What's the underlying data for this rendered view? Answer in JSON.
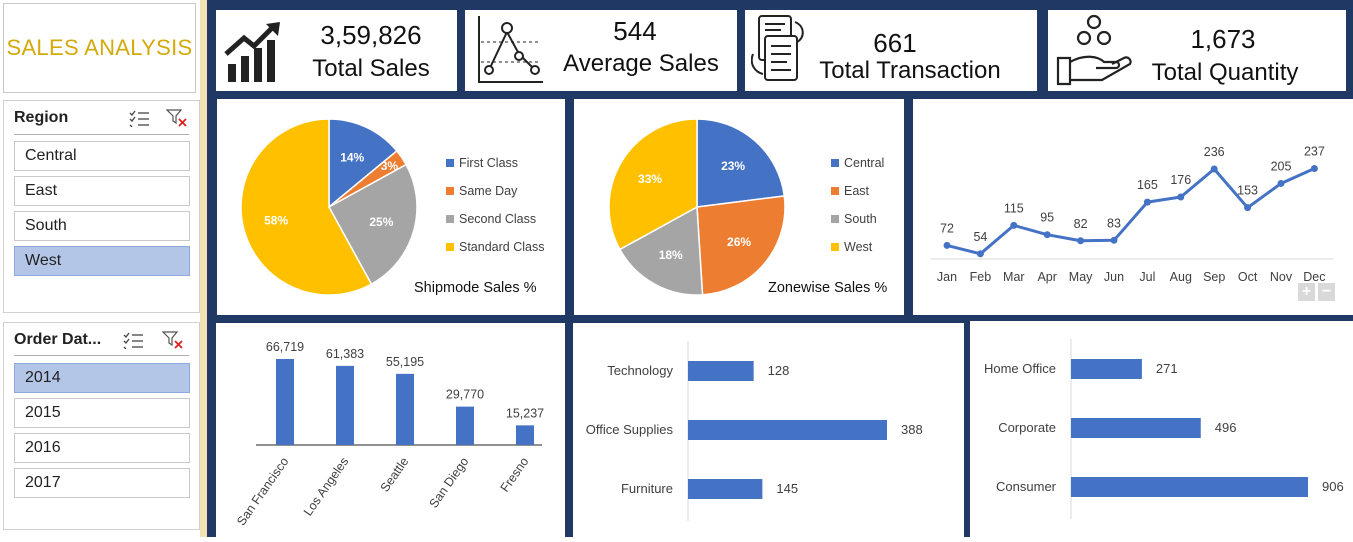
{
  "title": "SALES ANALYSIS",
  "kpis": {
    "total_sales": {
      "value": "3,59,826",
      "label": "Total Sales"
    },
    "average_sales": {
      "value": "544",
      "label": "Average Sales"
    },
    "total_transaction": {
      "value": "661",
      "label": "Total Transaction"
    },
    "total_quantity": {
      "value": "1,673",
      "label": "Total Quantity"
    }
  },
  "slicers": {
    "region": {
      "title": "Region",
      "items": [
        {
          "label": "Central",
          "selected": false
        },
        {
          "label": "East",
          "selected": false
        },
        {
          "label": "South",
          "selected": false
        },
        {
          "label": "West",
          "selected": true
        }
      ]
    },
    "order_date": {
      "title": "Order Dat...",
      "items": [
        {
          "label": "2014",
          "selected": true
        },
        {
          "label": "2015",
          "selected": false
        },
        {
          "label": "2016",
          "selected": false
        },
        {
          "label": "2017",
          "selected": false
        }
      ]
    }
  },
  "icons": {
    "kpi": [
      "bar-growth-icon",
      "line-chart-icon",
      "transaction-icon",
      "coins-hand-icon"
    ],
    "slicer": [
      "multi-select-icon",
      "clear-filter-icon"
    ]
  },
  "colors": {
    "navy": "#1f3864",
    "gold": "#d4a90a",
    "blue": "#4472c4",
    "orange": "#ed7d31",
    "gray": "#a5a5a5",
    "yellow": "#ffc000"
  },
  "chart_data": [
    {
      "id": "shipmode",
      "type": "pie",
      "title": "Shipmode Sales %",
      "categories": [
        "First Class",
        "Same Day",
        "Second Class",
        "Standard Class"
      ],
      "values": [
        14,
        3,
        25,
        58
      ],
      "labels": [
        "14%",
        "3%",
        "25%",
        "58%"
      ],
      "colors": [
        "#4472c4",
        "#ed7d31",
        "#a5a5a5",
        "#ffc000"
      ],
      "legend": "right"
    },
    {
      "id": "zonewise",
      "type": "pie",
      "title": "Zonewise Sales %",
      "categories": [
        "Central",
        "East",
        "South",
        "West"
      ],
      "values": [
        23,
        26,
        18,
        33
      ],
      "labels": [
        "23%",
        "26%",
        "18%",
        "33%"
      ],
      "colors": [
        "#4472c4",
        "#ed7d31",
        "#a5a5a5",
        "#ffc000"
      ],
      "legend": "right"
    },
    {
      "id": "monthly",
      "type": "line",
      "categories": [
        "Jan",
        "Feb",
        "Mar",
        "Apr",
        "May",
        "Jun",
        "Jul",
        "Aug",
        "Sep",
        "Oct",
        "Nov",
        "Dec"
      ],
      "values": [
        72,
        54,
        115,
        95,
        82,
        83,
        165,
        176,
        236,
        153,
        205,
        237
      ],
      "color": "#4472c4",
      "zoom_controls": [
        "+",
        "−"
      ]
    },
    {
      "id": "city",
      "type": "bar",
      "categories": [
        "San Francisco",
        "Los Angeles",
        "Seattle",
        "San Diego",
        "Fresno"
      ],
      "values": [
        66719,
        61383,
        55195,
        29770,
        15237
      ],
      "labels": [
        "66,719",
        "61,383",
        "55,195",
        "29,770",
        "15,237"
      ],
      "color": "#4472c4"
    },
    {
      "id": "category",
      "type": "bar",
      "orientation": "horizontal",
      "categories": [
        "Technology",
        "Office Supplies",
        "Furniture"
      ],
      "values": [
        128,
        388,
        145
      ],
      "color": "#4472c4"
    },
    {
      "id": "segment",
      "type": "bar",
      "orientation": "horizontal",
      "categories": [
        "Home Office",
        "Corporate",
        "Consumer"
      ],
      "values": [
        271,
        496,
        906
      ],
      "color": "#4472c4"
    }
  ]
}
